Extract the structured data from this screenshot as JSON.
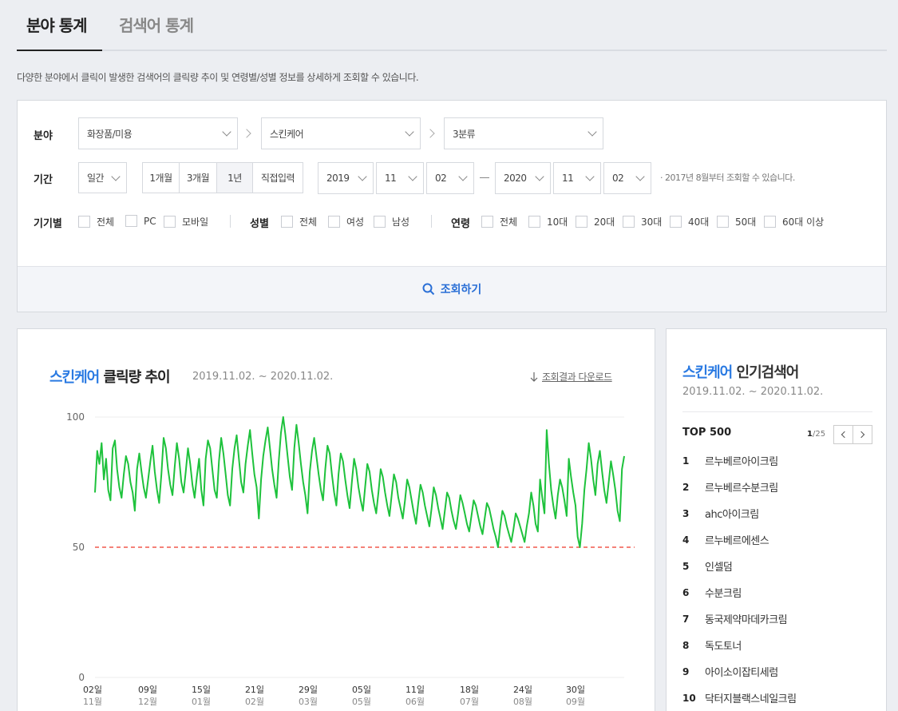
{
  "tabs": [
    {
      "label": "분야 통계",
      "active": true
    },
    {
      "label": "검색어 통계",
      "active": false
    }
  ],
  "description": "다양한 분야에서 클릭이 발생한 검색어의 클릭량 추이 및 연령별/성별 정보를 상세하게 조회할 수 있습니다.",
  "filter": {
    "category_label": "분야",
    "category": [
      "화장품/미용",
      "스킨케어",
      "3분류"
    ],
    "period_label": "기간",
    "period_unit": "일간",
    "period_ranges": [
      "1개월",
      "3개월",
      "1년",
      "직접입력"
    ],
    "period_active": "1년",
    "start": {
      "year": "2019",
      "month": "11",
      "day": "02"
    },
    "end": {
      "year": "2020",
      "month": "11",
      "day": "02"
    },
    "period_note": "· 2017년 8월부터 조회할 수 있습니다.",
    "device_label": "기기별",
    "device_options": [
      "전체",
      "PC",
      "모바일"
    ],
    "gender_label": "성별",
    "gender_options": [
      "전체",
      "여성",
      "남성"
    ],
    "age_label": "연령",
    "age_options": [
      "전체",
      "10대",
      "20대",
      "30대",
      "40대",
      "50대",
      "60대 이상"
    ],
    "search_button": "조회하기"
  },
  "chart": {
    "keyword": "스킨케어",
    "title_rest": " 클릭량 추이",
    "period": "2019.11.02. ~ 2020.11.02.",
    "download_label": "조회결과 다운로드"
  },
  "chart_data": {
    "type": "line",
    "title": "스킨케어 클릭량 추이",
    "ylim": [
      0,
      100
    ],
    "y_ticks": [
      0,
      50,
      100
    ],
    "reference_line": {
      "value": 50,
      "color": "#f0584d",
      "style": "dashed"
    },
    "x_ticks": [
      {
        "day": "02일",
        "month": "11월"
      },
      {
        "day": "09일",
        "month": "12월"
      },
      {
        "day": "15일",
        "month": "01월"
      },
      {
        "day": "21일",
        "month": "02월"
      },
      {
        "day": "29일",
        "month": "03월"
      },
      {
        "day": "05일",
        "month": "05월"
      },
      {
        "day": "11일",
        "month": "06월"
      },
      {
        "day": "18일",
        "month": "07월"
      },
      {
        "day": "24일",
        "month": "08월"
      },
      {
        "day": "30일",
        "month": "09월"
      }
    ],
    "series": [
      {
        "color": "#1ec23c",
        "values": [
          71,
          87,
          82,
          90,
          76,
          84,
          72,
          68,
          88,
          91,
          80,
          73,
          69,
          78,
          85,
          82,
          75,
          71,
          64,
          80,
          86,
          79,
          73,
          69,
          76,
          83,
          89,
          79,
          72,
          67,
          78,
          92,
          88,
          80,
          74,
          70,
          81,
          90,
          84,
          75,
          71,
          79,
          88,
          82,
          74,
          69,
          77,
          84,
          72,
          66,
          84,
          91,
          88,
          80,
          72,
          69,
          83,
          92,
          86,
          78,
          70,
          66,
          80,
          88,
          93,
          84,
          75,
          71,
          82,
          89,
          95,
          86,
          78,
          73,
          61,
          76,
          85,
          91,
          96,
          88,
          80,
          74,
          69,
          83,
          94,
          100,
          93,
          85,
          77,
          72,
          88,
          97,
          90,
          82,
          75,
          70,
          63,
          79,
          87,
          92,
          85,
          78,
          72,
          68,
          80,
          89,
          86,
          78,
          71,
          66,
          78,
          86,
          83,
          76,
          70,
          65,
          75,
          84,
          80,
          73,
          68,
          64,
          73,
          82,
          79,
          72,
          67,
          63,
          71,
          80,
          77,
          71,
          66,
          62,
          70,
          78,
          75,
          69,
          65,
          61,
          68,
          76,
          73,
          68,
          63,
          59,
          67,
          74,
          71,
          66,
          62,
          58,
          65,
          73,
          70,
          65,
          61,
          57,
          64,
          71,
          69,
          64,
          60,
          57,
          63,
          70,
          67,
          63,
          59,
          56,
          62,
          68,
          66,
          62,
          58,
          55,
          61,
          67,
          65,
          61,
          57,
          54,
          50,
          58,
          64,
          62,
          58,
          55,
          52,
          57,
          63,
          61,
          58,
          55,
          52,
          58,
          63,
          71,
          66,
          59,
          56,
          76,
          69,
          63,
          95,
          82,
          72,
          66,
          61,
          70,
          76,
          73,
          68,
          62,
          84,
          77,
          71,
          66,
          54,
          50,
          59,
          72,
          80,
          90,
          84,
          76,
          70,
          82,
          87,
          79,
          72,
          67,
          75,
          83,
          78,
          72,
          64,
          60,
          80,
          85
        ]
      }
    ]
  },
  "popular": {
    "keyword": "스킨케어",
    "title_rest": " 인기검색어",
    "period": "2019.11.02. ~ 2020.11.02.",
    "top_label": "TOP 500",
    "page_current": "1",
    "page_total": "/25",
    "items": [
      {
        "rank": "1",
        "keyword": "르누베르아이크림"
      },
      {
        "rank": "2",
        "keyword": "르누베르수분크림"
      },
      {
        "rank": "3",
        "keyword": "ahc아이크림"
      },
      {
        "rank": "4",
        "keyword": "르누베르에센스"
      },
      {
        "rank": "5",
        "keyword": "인셀덤"
      },
      {
        "rank": "6",
        "keyword": "수분크림"
      },
      {
        "rank": "7",
        "keyword": "동국제약마데카크림"
      },
      {
        "rank": "8",
        "keyword": "독도토너"
      },
      {
        "rank": "9",
        "keyword": "아이소이잡티세럼"
      },
      {
        "rank": "10",
        "keyword": "닥터지블랙스네일크림"
      }
    ]
  },
  "colors": {
    "accent": "#2a7ae2",
    "line": "#1ec23c",
    "reference": "#f0584d"
  }
}
